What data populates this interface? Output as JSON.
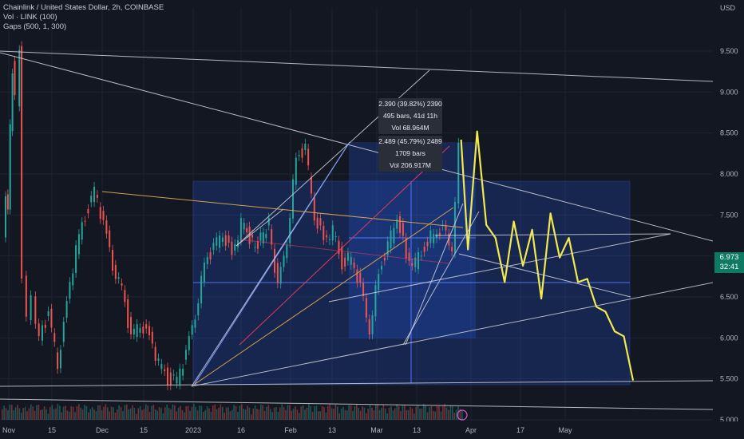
{
  "legend": {
    "symbol": "Chainlink / United States Dollar, 2h, COINBASE",
    "volume": "Vol · LINK (100)",
    "gaps": "Gaps (500, 1, 300)"
  },
  "currency": "USD",
  "last_price": {
    "value": "6.973",
    "countdown": "32:41"
  },
  "measure_1": {
    "line1": "2.390 (39.82%) 2390",
    "line2": "495 bars, 41d 11h",
    "line3": "Vol 68.964M"
  },
  "measure_2": {
    "line1": "2.489 (45.79%) 2489",
    "line2": "1709 bars",
    "line3": "Vol 206.917M"
  },
  "colors": {
    "background": "#131722",
    "up": "#26a69a",
    "down": "#ef5350",
    "projection": "#f2e94e",
    "box": "#2962ff",
    "accent": "#0f7a63"
  },
  "chart_data": {
    "type": "line",
    "y_axis": {
      "unit": "USD",
      "ylim": [
        5.0,
        9.7
      ],
      "ticks": [
        "9.500",
        "9.000",
        "8.500",
        "8.000",
        "7.500",
        "7.000",
        "6.500",
        "6.000",
        "5.500",
        "5.000"
      ]
    },
    "x_axis": {
      "ticks": [
        "Nov",
        "15",
        "Dec",
        "15",
        "2023",
        "16",
        "Feb",
        "13",
        "Mar",
        "13",
        "Apr",
        "17",
        "May"
      ]
    },
    "grid": true,
    "series": [
      {
        "x": [
          0.0,
          0.5,
          1.0,
          1.5,
          2.0,
          3.0,
          3.5,
          4.5,
          5.5,
          6.5,
          8.0,
          10.0,
          12.0,
          14.0,
          16.0,
          18.0,
          20.0,
          22.0,
          24.0,
          26.0,
          28.0,
          30.0,
          32.0,
          34.0,
          36.0,
          38.0,
          40.0,
          42.0,
          44.0,
          46.0,
          48.0,
          50.0,
          52.0,
          55.0,
          58.0,
          60.0,
          62.0,
          64.0,
          66.0,
          68.0,
          70.0,
          72.0,
          74.0,
          76.0,
          78.0,
          80.0,
          82.0,
          84.0,
          86.0,
          88.0,
          90.0,
          92.0,
          94.0,
          96.0,
          98.0,
          99.5,
          101.0,
          103.0,
          105.0,
          107.0,
          109.0,
          111.0,
          113.0,
          115.0,
          117.0,
          119.0,
          121.0,
          123.0,
          125.0,
          127.0,
          129.0,
          131.0,
          133.0,
          135.0,
          137.0
        ],
        "values": [
          7.2,
          7.8,
          7.5,
          8.6,
          9.3,
          8.9,
          9.5,
          6.8,
          6.2,
          6.5,
          6.0,
          6.3,
          5.7,
          6.4,
          7.1,
          7.5,
          7.8,
          7.4,
          6.9,
          6.6,
          6.0,
          6.2,
          6.0,
          5.7,
          5.5,
          5.5,
          5.8,
          6.3,
          6.9,
          7.1,
          7.3,
          7.0,
          7.4,
          7.1,
          7.4,
          6.6,
          7.2,
          8.2,
          8.3,
          7.5,
          7.2,
          7.3,
          6.9,
          7.0,
          6.6,
          6.1,
          6.8,
          7.1,
          7.5,
          7.0,
          6.9,
          7.1,
          7.3,
          7.3,
          7.1,
          8.3,
          7.2,
          8.4,
          7.5,
          7.1,
          6.8,
          7.3,
          7.0,
          7.2,
          6.6,
          7.4,
          7.1,
          7.1,
          6.8,
          6.6,
          6.5,
          6.2,
          6.2,
          5.9,
          5.6
        ]
      }
    ]
  }
}
